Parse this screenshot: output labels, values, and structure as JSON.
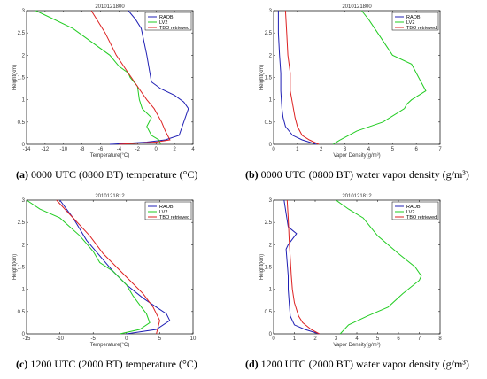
{
  "captions": [
    {
      "letter": "(a)",
      "text": "0000 UTC (0800 BT) temperature (°C)"
    },
    {
      "letter": "(b)",
      "text": "0000 UTC (0800 BT) water vapor density (g/m³)"
    },
    {
      "letter": "(c)",
      "text": "1200 UTC (2000 BT) temperature (°C)"
    },
    {
      "letter": "(d)",
      "text": "1200 UTC (2000 BT) water vapor density (g/m³)"
    }
  ],
  "colors": {
    "RAOB": "#1f1fb4",
    "LV2": "#22cc22",
    "TBO": "#dd2222"
  },
  "chart_data": [
    {
      "type": "line",
      "title": "2010121800",
      "xlabel": "Temperature(°C)",
      "ylabel": "Height(km)",
      "xlim": [
        -14,
        4
      ],
      "ylim": [
        0,
        3
      ],
      "xticks": [
        -14,
        -12,
        -10,
        -8,
        -6,
        -4,
        -2,
        0,
        2,
        4
      ],
      "yticks": [
        0,
        0.5,
        1,
        1.5,
        2,
        2.5,
        3
      ],
      "legend": "top-right",
      "series": [
        {
          "name": "RAOB",
          "x": [
            -5,
            -1,
            1,
            2.5,
            3.5,
            3,
            2,
            0.5,
            -0.5,
            -1,
            -1.6,
            -2.2,
            -3
          ],
          "y": [
            0,
            0.05,
            0.1,
            0.2,
            0.8,
            0.95,
            1.1,
            1.25,
            1.4,
            2.0,
            2.6,
            2.8,
            3.0
          ]
        },
        {
          "name": "LV2",
          "x": [
            0.5,
            0.3,
            -0.5,
            -1,
            -0.5,
            -1.5,
            -1.8,
            -2,
            -2.8,
            -3,
            -4,
            -5,
            -9,
            -13
          ],
          "y": [
            0,
            0.1,
            0.2,
            0.4,
            0.6,
            0.8,
            1.0,
            1.3,
            1.5,
            1.6,
            1.75,
            2.0,
            2.6,
            3.0
          ]
        },
        {
          "name": "TBO retrieved",
          "x": [
            -4,
            0,
            1.5,
            1.0,
            0.6,
            -0.2,
            -1.0,
            -2.0,
            -3.0,
            -4.3,
            -5.5,
            -7.0
          ],
          "y": [
            0,
            0.05,
            0.1,
            0.3,
            0.5,
            0.8,
            1.0,
            1.3,
            1.6,
            2.0,
            2.5,
            3.0
          ]
        }
      ]
    },
    {
      "type": "line",
      "title": "2010121800",
      "xlabel": "Vapor Density(g/m³)",
      "ylabel": "Height(km)",
      "xlim": [
        0,
        7
      ],
      "ylim": [
        0,
        3
      ],
      "xticks": [
        0,
        1,
        2,
        3,
        4,
        5,
        6,
        7
      ],
      "yticks": [
        0,
        0.5,
        1,
        1.5,
        2,
        2.5,
        3
      ],
      "legend": "top-right",
      "series": [
        {
          "name": "RAOB",
          "x": [
            1.8,
            1.2,
            0.8,
            0.5,
            0.4,
            0.35,
            0.3,
            0.3,
            0.25,
            0.2,
            0.2
          ],
          "y": [
            0,
            0.1,
            0.2,
            0.4,
            0.6,
            0.8,
            1.2,
            1.6,
            2.0,
            2.5,
            3.0
          ]
        },
        {
          "name": "LV2",
          "x": [
            2.5,
            2.8,
            3.5,
            4.6,
            5.5,
            5.6,
            5.8,
            6.4,
            6.1,
            5.8,
            5.0,
            4.5,
            4.0,
            3.7
          ],
          "y": [
            0,
            0.1,
            0.3,
            0.5,
            0.8,
            0.9,
            1.0,
            1.2,
            1.5,
            1.8,
            2.0,
            2.4,
            2.8,
            3.0
          ]
        },
        {
          "name": "TBO retrieved",
          "x": [
            1.9,
            1.5,
            1.2,
            1.0,
            0.9,
            0.8,
            0.7,
            0.7,
            0.6,
            0.55,
            0.5
          ],
          "y": [
            0,
            0.1,
            0.2,
            0.4,
            0.6,
            0.9,
            1.2,
            1.6,
            2.0,
            2.5,
            3.0
          ]
        }
      ]
    },
    {
      "type": "line",
      "title": "2010121812",
      "xlabel": "Temperature(°C)",
      "ylabel": "Height(km)",
      "xlim": [
        -15,
        10
      ],
      "ylim": [
        0,
        3
      ],
      "xticks": [
        -15,
        -10,
        -5,
        0,
        5,
        10
      ],
      "yticks": [
        0,
        0.5,
        1,
        1.5,
        2,
        2.5,
        3
      ],
      "legend": "top-right",
      "series": [
        {
          "name": "RAOB",
          "x": [
            0,
            4.5,
            6.5,
            6,
            4.5,
            2.5,
            0,
            -2,
            -4,
            -6,
            -8,
            -10
          ],
          "y": [
            0,
            0.1,
            0.3,
            0.45,
            0.6,
            0.8,
            1.1,
            1.4,
            1.75,
            2.1,
            2.6,
            3.0
          ]
        },
        {
          "name": "LV2",
          "x": [
            -1,
            2,
            3.5,
            3,
            2,
            1,
            0,
            -2,
            -4,
            -5,
            -7,
            -10,
            -13,
            -15
          ],
          "y": [
            0,
            0.1,
            0.25,
            0.45,
            0.65,
            0.85,
            1.1,
            1.4,
            1.6,
            1.85,
            2.2,
            2.6,
            2.8,
            3.0
          ]
        },
        {
          "name": "TBO retrieved",
          "x": [
            4.5,
            5,
            4,
            2.5,
            0.5,
            -1.5,
            -3.5,
            -5.5,
            -8,
            -10.5
          ],
          "y": [
            0,
            0.3,
            0.6,
            0.9,
            1.2,
            1.5,
            1.8,
            2.2,
            2.6,
            3.0
          ]
        }
      ]
    },
    {
      "type": "line",
      "title": "2010121812",
      "xlabel": "Vapor Density(g/m³)",
      "ylabel": "Height(km)",
      "xlim": [
        0,
        8
      ],
      "ylim": [
        0,
        3
      ],
      "xticks": [
        0,
        1,
        2,
        3,
        4,
        5,
        6,
        7,
        8
      ],
      "yticks": [
        0,
        0.5,
        1,
        1.5,
        2,
        2.5,
        3
      ],
      "legend": "top-right",
      "series": [
        {
          "name": "RAOB",
          "x": [
            2.2,
            1.5,
            1.0,
            0.8,
            0.75,
            0.7,
            0.7,
            0.65,
            0.6,
            0.7,
            1.1,
            0.7,
            0.6,
            0.5
          ],
          "y": [
            0,
            0.1,
            0.2,
            0.4,
            0.7,
            1.0,
            1.3,
            1.6,
            1.9,
            2.0,
            2.25,
            2.4,
            2.7,
            3.0
          ]
        },
        {
          "name": "LV2",
          "x": [
            3.2,
            3.6,
            4.5,
            5.5,
            6.2,
            7.0,
            7.1,
            6.8,
            6.0,
            5.0,
            4.3,
            3.6,
            3.0
          ],
          "y": [
            0,
            0.2,
            0.4,
            0.6,
            0.9,
            1.2,
            1.3,
            1.5,
            1.8,
            2.2,
            2.6,
            2.8,
            3.0
          ]
        },
        {
          "name": "TBO retrieved",
          "x": [
            2.2,
            1.8,
            1.4,
            1.2,
            1.0,
            0.9,
            0.85,
            0.8,
            0.75,
            0.7,
            0.65
          ],
          "y": [
            0,
            0.1,
            0.25,
            0.4,
            0.7,
            1.0,
            1.3,
            1.7,
            2.1,
            2.6,
            3.0
          ]
        }
      ]
    }
  ]
}
